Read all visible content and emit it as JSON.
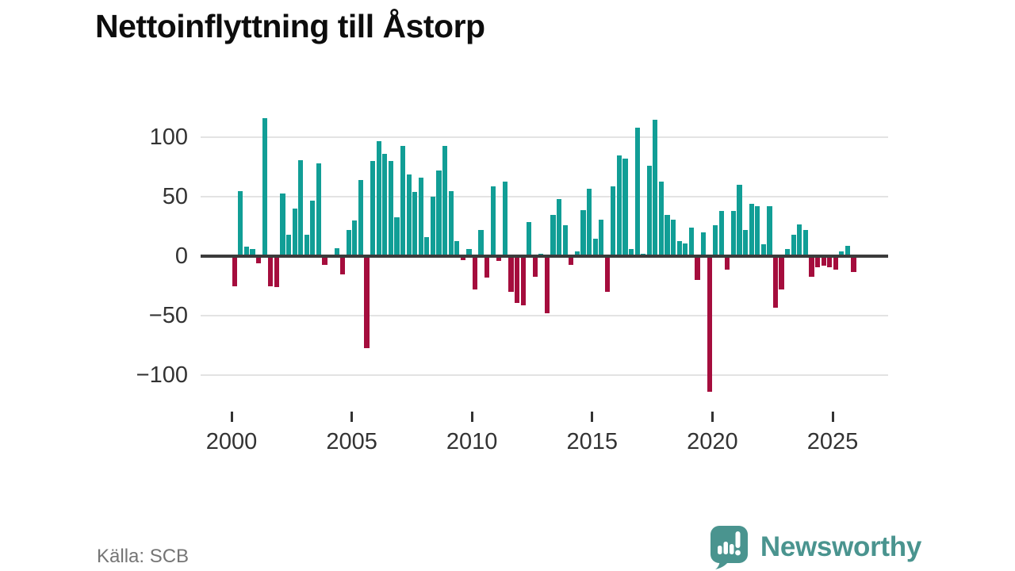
{
  "title": "Nettoinflyttning till Åstorp",
  "source": "Källa: SCB",
  "logo": {
    "text": "Newsworthy",
    "icon": "newsworthy-speech-bubble-chart-icon"
  },
  "colors": {
    "positive_bar": "#119e96",
    "negative_bar": "#a50d3d",
    "zero_axis": "#3b3b3b",
    "gridline": "#e3e3e3",
    "tick_text": "#333333",
    "source_text": "#757575",
    "logo_teal": "#4a948f"
  },
  "chart_data": {
    "type": "bar",
    "title": "Nettoinflyttning till Åstorp",
    "xlabel": "",
    "ylabel": "",
    "frequency": "quarterly",
    "start_period": "2000 Q1",
    "end_period": "2025 Q4",
    "x_tick_labels": [
      "2000",
      "2005",
      "2010",
      "2015",
      "2020",
      "2025"
    ],
    "y_ticks": [
      100,
      50,
      0,
      -50,
      -100
    ],
    "ylim": [
      -121,
      121
    ],
    "grid": "horizontal",
    "legend": "none",
    "values": [
      -25,
      55,
      8,
      6,
      -6,
      116,
      -25,
      -26,
      53,
      18,
      40,
      81,
      18,
      47,
      78,
      -7,
      0,
      7,
      -15,
      22,
      30,
      64,
      -77,
      80,
      97,
      86,
      80,
      33,
      93,
      69,
      54,
      66,
      16,
      50,
      72,
      93,
      55,
      13,
      -3,
      6,
      -28,
      22,
      -18,
      59,
      -4,
      63,
      -30,
      -39,
      -41,
      29,
      -17,
      2,
      -48,
      35,
      48,
      26,
      -7,
      4,
      39,
      57,
      15,
      31,
      -30,
      59,
      85,
      82,
      6,
      108,
      2,
      76,
      115,
      63,
      35,
      31,
      13,
      11,
      24,
      -20,
      20,
      -114,
      26,
      38,
      -11,
      38,
      60,
      22,
      44,
      42,
      10,
      42,
      -43,
      -28,
      6,
      18,
      27,
      22,
      -17,
      -9,
      -8,
      -9,
      -11,
      4,
      9,
      -13
    ]
  }
}
